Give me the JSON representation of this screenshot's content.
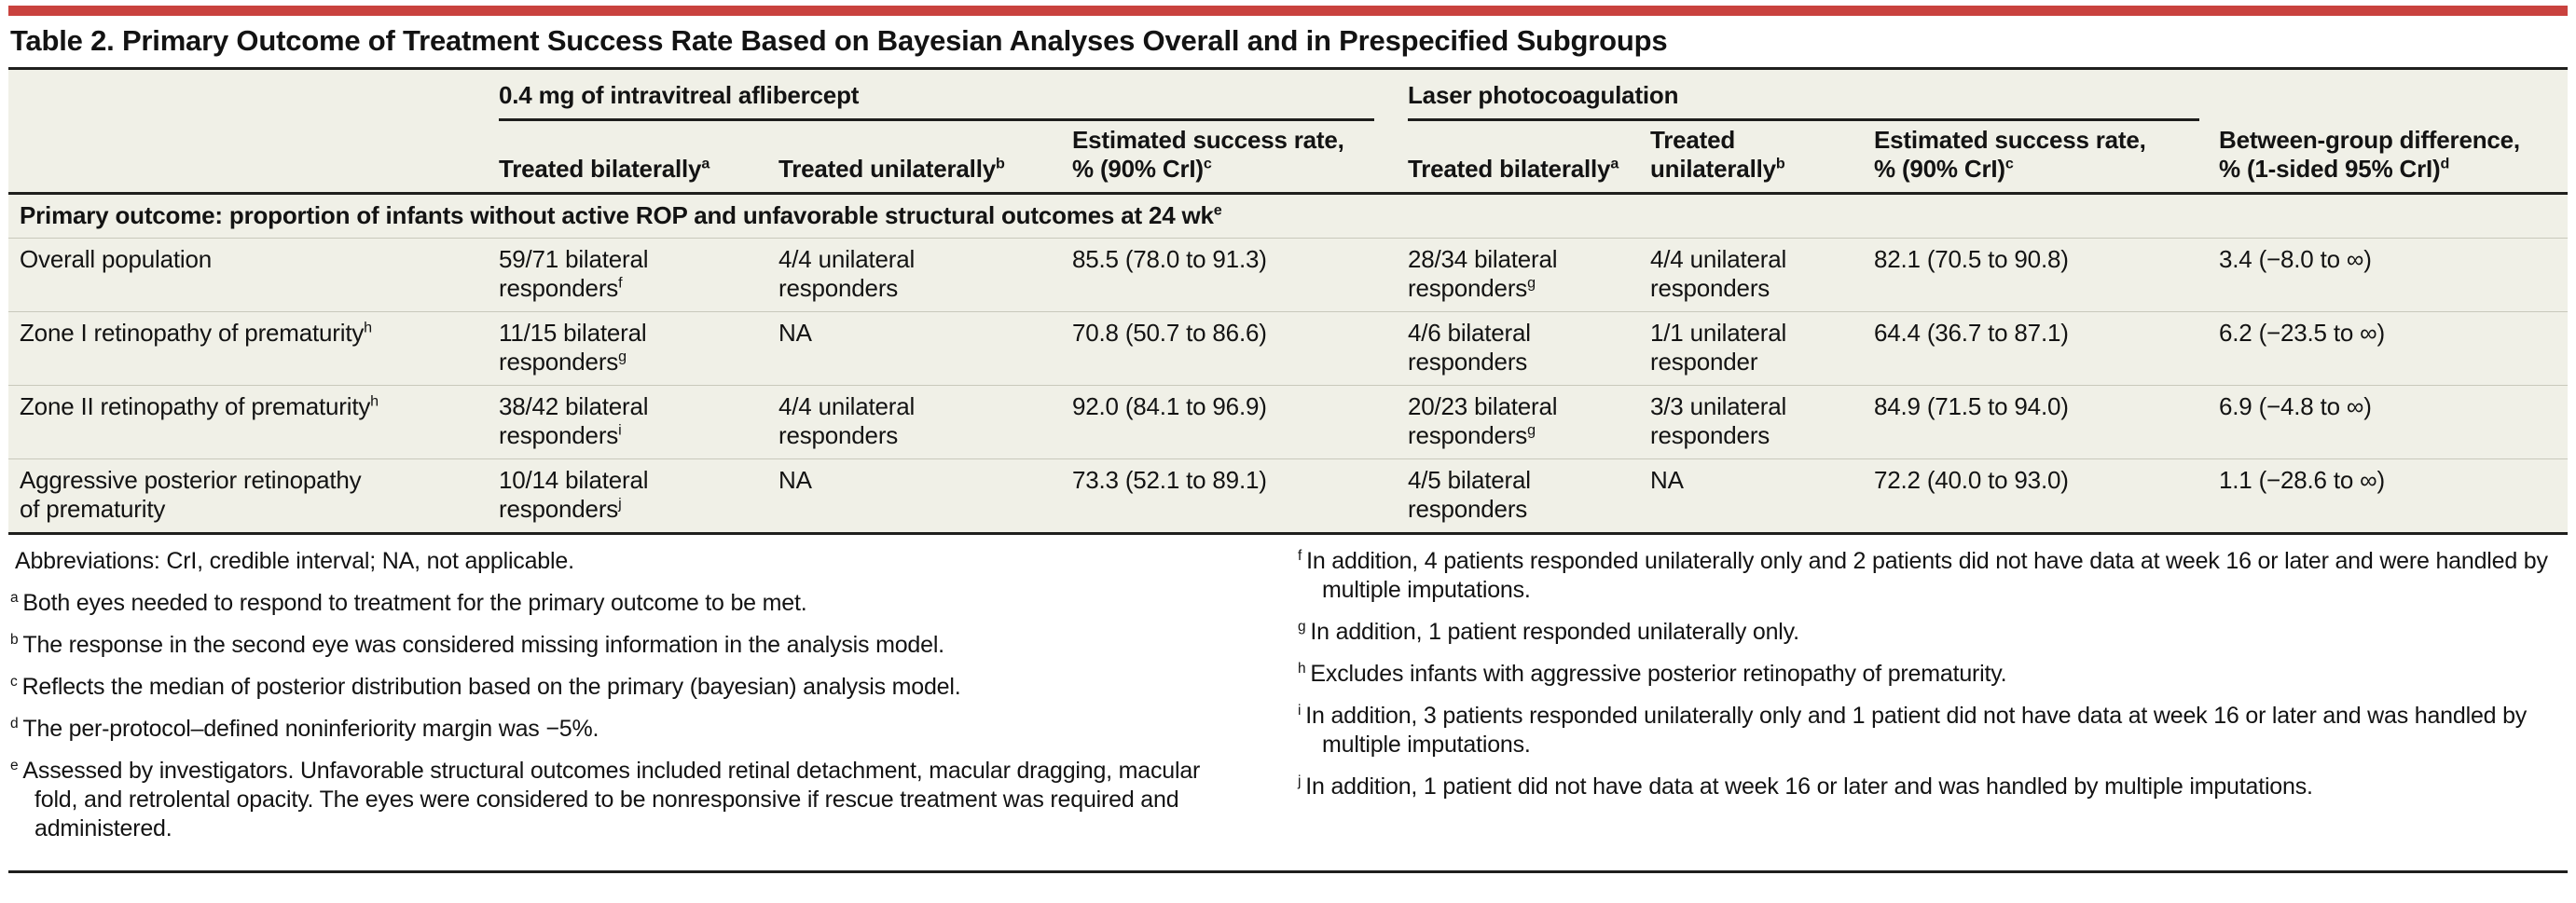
{
  "title": "Table 2. Primary Outcome of Treatment Success Rate Based on Bayesian Analyses Overall and in Prespecified Subgroups",
  "colors": {
    "accent_red": "#c9423e",
    "table_background": "#f0f0e7",
    "rule_dark": "#1f1f1d",
    "row_divider": "#c9c9bc"
  },
  "table": {
    "groups": {
      "aflibercept": "0.4 mg of intravitreal aflibercept",
      "laser": "Laser photocoagulation"
    },
    "columns": [
      {
        "text": "Treated bilaterally",
        "sup": "a"
      },
      {
        "text": "Treated unilaterally",
        "sup": "b"
      },
      {
        "text": "Estimated success rate,\n% (90% CrI)",
        "sup": "c"
      },
      {
        "text": "Treated bilaterally",
        "sup": "a"
      },
      {
        "text": "Treated\nunilaterally",
        "sup": "b"
      },
      {
        "text": "Estimated success rate,\n% (90% CrI)",
        "sup": "c"
      },
      {
        "text": "Between-group difference,\n% (1-sided 95% CrI)",
        "sup": "d"
      }
    ],
    "section": {
      "text": "Primary outcome: proportion of infants without active ROP and unfavorable structural outcomes at 24 wk",
      "sup": "e"
    },
    "rows": [
      {
        "label": {
          "text": "Overall population"
        },
        "cells": [
          {
            "text": "59/71 bilateral\nresponders",
            "sup": "f"
          },
          {
            "text": "4/4 unilateral\nresponders"
          },
          {
            "text": "85.5 (78.0 to 91.3)"
          },
          {
            "text": "28/34 bilateral\nresponders",
            "sup": "g"
          },
          {
            "text": "4/4 unilateral\nresponders"
          },
          {
            "text": "82.1 (70.5 to 90.8)"
          },
          {
            "text": "3.4 (−8.0 to ∞)"
          }
        ]
      },
      {
        "label": {
          "text": "Zone I retinopathy of prematurity",
          "sup": "h"
        },
        "cells": [
          {
            "text": "11/15 bilateral\nresponders",
            "sup": "g"
          },
          {
            "text": "NA"
          },
          {
            "text": "70.8 (50.7 to 86.6)"
          },
          {
            "text": "4/6 bilateral\nresponders"
          },
          {
            "text": "1/1 unilateral\nresponder"
          },
          {
            "text": "64.4 (36.7 to 87.1)"
          },
          {
            "text": "6.2 (−23.5 to ∞)"
          }
        ]
      },
      {
        "label": {
          "text": "Zone II retinopathy of prematurity",
          "sup": "h"
        },
        "cells": [
          {
            "text": "38/42 bilateral\nresponders",
            "sup": "i"
          },
          {
            "text": "4/4 unilateral\nresponders"
          },
          {
            "text": "92.0 (84.1 to 96.9)"
          },
          {
            "text": "20/23 bilateral\nresponders",
            "sup": "g"
          },
          {
            "text": "3/3 unilateral\nresponders"
          },
          {
            "text": "84.9 (71.5 to 94.0)"
          },
          {
            "text": "6.9 (−4.8 to ∞)"
          }
        ]
      },
      {
        "label": {
          "text": "Aggressive posterior retinopathy\nof prematurity"
        },
        "cells": [
          {
            "text": "10/14 bilateral\nresponders",
            "sup": "j"
          },
          {
            "text": "NA"
          },
          {
            "text": "73.3 (52.1 to 89.1)"
          },
          {
            "text": "4/5 bilateral\nresponders"
          },
          {
            "text": "NA"
          },
          {
            "text": "72.2 (40.0 to 93.0)"
          },
          {
            "text": "1.1 (−28.6 to ∞)"
          }
        ]
      }
    ]
  },
  "footnotes": {
    "left": [
      {
        "sup": "",
        "text": "Abbreviations: CrI, credible interval; NA, not applicable."
      },
      {
        "sup": "a",
        "text": "Both eyes needed to respond to treatment for the primary outcome to be met."
      },
      {
        "sup": "b",
        "text": "The response in the second eye was considered missing information in the analysis model."
      },
      {
        "sup": "c",
        "text": "Reflects the median of posterior distribution based on the primary (bayesian) analysis model."
      },
      {
        "sup": "d",
        "text": "The per-protocol–defined noninferiority margin was −5%."
      },
      {
        "sup": "e",
        "text": "Assessed by investigators. Unfavorable structural outcomes included retinal detachment, macular dragging, macular fold, and retrolental opacity. The eyes were considered to be nonresponsive if rescue treatment was required and administered."
      }
    ],
    "right": [
      {
        "sup": "f",
        "text": "In addition, 4 patients responded unilaterally only and 2 patients did not have data at week 16 or later and were handled by multiple imputations."
      },
      {
        "sup": "g",
        "text": "In addition, 1 patient responded unilaterally only."
      },
      {
        "sup": "h",
        "text": "Excludes infants with aggressive posterior retinopathy of prematurity."
      },
      {
        "sup": "i",
        "text": "In addition, 3 patients responded unilaterally only and 1 patient did not have data at week 16 or later and was handled by multiple imputations."
      },
      {
        "sup": "j",
        "text": "In addition, 1 patient did not have data at week 16 or later and was handled by multiple imputations."
      }
    ]
  }
}
